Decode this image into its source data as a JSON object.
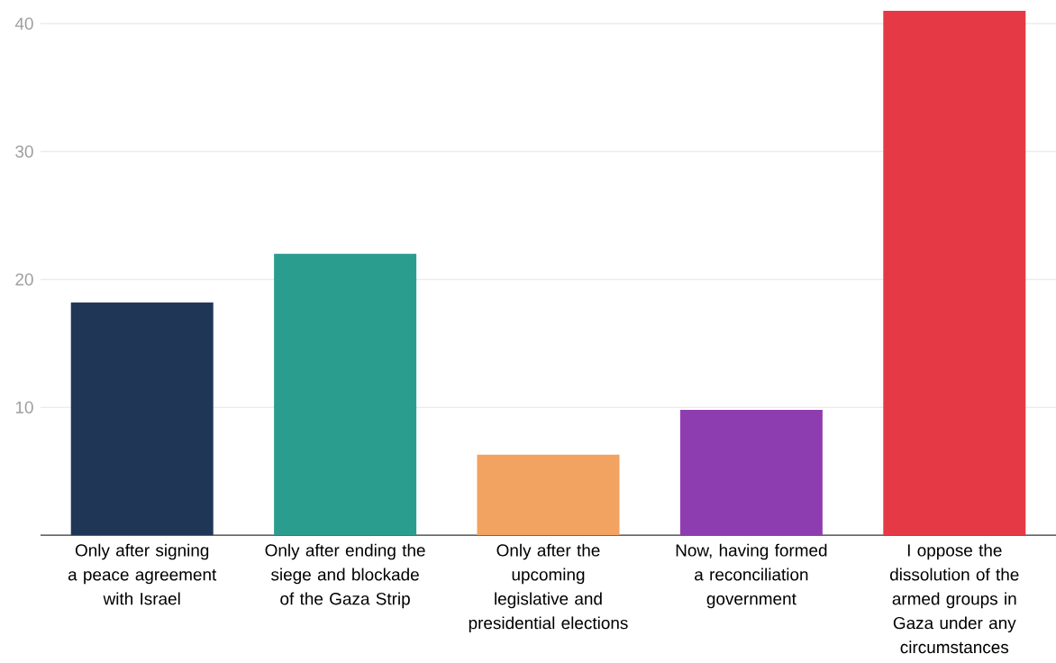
{
  "chart_data": {
    "type": "bar",
    "categories": [
      "Only after signing a peace agreement with Israel",
      "Only after ending the siege and blockade of the Gaza Strip",
      "Only after the upcoming legislative and presidential elections",
      "Now, having formed a reconciliation government",
      "I oppose the dissolution of the armed groups in Gaza under any circumstances"
    ],
    "values": [
      18.2,
      22.0,
      6.3,
      9.8,
      41.0
    ],
    "colors": [
      "#1f3657",
      "#2a9d8f",
      "#f2a261",
      "#8e3db0",
      "#e63946"
    ],
    "ylim": [
      0,
      41
    ],
    "yticks": [
      10,
      20,
      30,
      40
    ],
    "grid": "y"
  }
}
